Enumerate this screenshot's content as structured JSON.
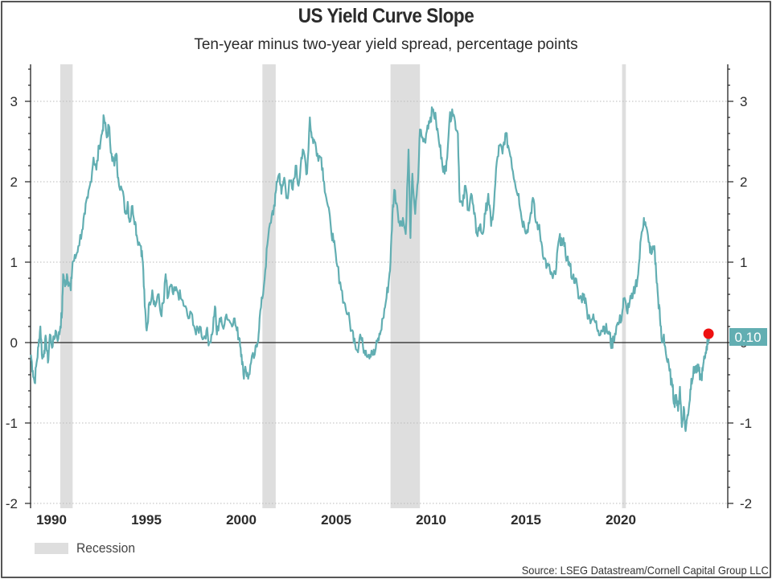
{
  "header": {
    "title": "US Yield Curve Slope",
    "subtitle": "Ten-year minus two-year yield spread, percentage points"
  },
  "legend": {
    "recession_label": "Recession"
  },
  "footer": {
    "source": "Source: LSEG Datastream/Cornell Capital Group LLC"
  },
  "colors": {
    "series": "#62aeb2",
    "recession": "#dedede",
    "end_marker": "#ee1111",
    "end_label_bg": "#62aeb2",
    "axis": "#222222",
    "grid": "#bbbbbb"
  },
  "chart_data": {
    "type": "line",
    "title": "US Yield Curve Slope",
    "subtitle": "Ten-year minus two-year yield spread, percentage points",
    "xlabel": "",
    "ylabel": "",
    "xlim": [
      1989.0,
      2025.7
    ],
    "ylim": [
      -2,
      3.45
    ],
    "x_ticks": [
      1990,
      1995,
      2000,
      2005,
      2010,
      2015,
      2020
    ],
    "x_tick_labels": [
      "1990",
      "1995",
      "2000",
      "2005",
      "2010",
      "2015",
      "2020"
    ],
    "y_ticks": [
      -2,
      -1,
      0,
      1,
      2,
      3
    ],
    "y_tick_labels": [
      "-2",
      "-1",
      "0",
      "1",
      "2",
      "3"
    ],
    "y_minor_step": 0.2,
    "grid": "horizontal dotted at major y ticks",
    "axes": "left and right",
    "legend_position": "bottom-left",
    "recessions": [
      {
        "start": 1990.55,
        "end": 1991.2
      },
      {
        "start": 2001.2,
        "end": 2001.9
      },
      {
        "start": 2007.95,
        "end": 2009.5
      },
      {
        "start": 2020.15,
        "end": 2020.35
      }
    ],
    "end_value": {
      "x": 2024.75,
      "y": 0.1,
      "label": "0.10"
    },
    "series": [
      {
        "name": "10Y-2Y spread",
        "points": [
          [
            1989.0,
            -0.15
          ],
          [
            1989.1,
            -0.35
          ],
          [
            1989.2,
            -0.5
          ],
          [
            1989.3,
            -0.25
          ],
          [
            1989.4,
            -0.05
          ],
          [
            1989.5,
            0.2
          ],
          [
            1989.6,
            -0.2
          ],
          [
            1989.7,
            -0.1
          ],
          [
            1989.8,
            0.05
          ],
          [
            1989.9,
            -0.25
          ],
          [
            1990.0,
            0.1
          ],
          [
            1990.15,
            -0.05
          ],
          [
            1990.3,
            0.15
          ],
          [
            1990.45,
            0.05
          ],
          [
            1990.55,
            0.2
          ],
          [
            1990.65,
            0.4
          ],
          [
            1990.7,
            0.85
          ],
          [
            1990.8,
            0.7
          ],
          [
            1990.9,
            0.85
          ],
          [
            1991.0,
            0.75
          ],
          [
            1991.1,
            0.65
          ],
          [
            1991.2,
            1.0
          ],
          [
            1991.35,
            1.05
          ],
          [
            1991.5,
            1.2
          ],
          [
            1991.7,
            1.4
          ],
          [
            1991.85,
            1.6
          ],
          [
            1992.0,
            1.8
          ],
          [
            1992.15,
            2.0
          ],
          [
            1992.3,
            2.3
          ],
          [
            1992.45,
            2.15
          ],
          [
            1992.6,
            2.45
          ],
          [
            1992.75,
            2.6
          ],
          [
            1992.85,
            2.8
          ],
          [
            1993.0,
            2.55
          ],
          [
            1993.1,
            2.7
          ],
          [
            1993.25,
            2.35
          ],
          [
            1993.4,
            2.2
          ],
          [
            1993.5,
            2.35
          ],
          [
            1993.6,
            2.05
          ],
          [
            1993.8,
            1.9
          ],
          [
            1994.0,
            1.6
          ],
          [
            1994.1,
            1.75
          ],
          [
            1994.2,
            1.5
          ],
          [
            1994.35,
            1.7
          ],
          [
            1994.5,
            1.5
          ],
          [
            1994.6,
            1.3
          ],
          [
            1994.8,
            1.2
          ],
          [
            1994.9,
            1.0
          ],
          [
            1995.0,
            0.45
          ],
          [
            1995.1,
            0.15
          ],
          [
            1995.25,
            0.5
          ],
          [
            1995.4,
            0.65
          ],
          [
            1995.55,
            0.45
          ],
          [
            1995.7,
            0.6
          ],
          [
            1995.85,
            0.35
          ],
          [
            1996.0,
            0.5
          ],
          [
            1996.1,
            0.85
          ],
          [
            1996.2,
            0.55
          ],
          [
            1996.35,
            0.7
          ],
          [
            1996.5,
            0.6
          ],
          [
            1996.7,
            0.65
          ],
          [
            1996.9,
            0.55
          ],
          [
            1997.1,
            0.45
          ],
          [
            1997.3,
            0.3
          ],
          [
            1997.5,
            0.35
          ],
          [
            1997.7,
            0.1
          ],
          [
            1997.9,
            0.2
          ],
          [
            1998.1,
            0.05
          ],
          [
            1998.25,
            0.15
          ],
          [
            1998.4,
            0.0
          ],
          [
            1998.55,
            0.1
          ],
          [
            1998.7,
            0.45
          ],
          [
            1998.8,
            0.1
          ],
          [
            1998.95,
            0.3
          ],
          [
            1999.1,
            0.2
          ],
          [
            1999.3,
            0.35
          ],
          [
            1999.5,
            0.25
          ],
          [
            1999.7,
            0.3
          ],
          [
            1999.85,
            0.15
          ],
          [
            2000.0,
            0.05
          ],
          [
            2000.1,
            -0.15
          ],
          [
            2000.2,
            -0.4
          ],
          [
            2000.3,
            -0.3
          ],
          [
            2000.45,
            -0.45
          ],
          [
            2000.6,
            -0.25
          ],
          [
            2000.8,
            -0.15
          ],
          [
            2000.95,
            0.0
          ],
          [
            2001.05,
            0.3
          ],
          [
            2001.2,
            0.55
          ],
          [
            2001.35,
            0.9
          ],
          [
            2001.5,
            1.3
          ],
          [
            2001.7,
            1.6
          ],
          [
            2001.85,
            1.7
          ],
          [
            2001.95,
            2.0
          ],
          [
            2002.1,
            2.1
          ],
          [
            2002.2,
            1.85
          ],
          [
            2002.35,
            2.05
          ],
          [
            2002.5,
            1.8
          ],
          [
            2002.65,
            2.0
          ],
          [
            2002.8,
            1.9
          ],
          [
            2002.95,
            2.2
          ],
          [
            2003.1,
            1.95
          ],
          [
            2003.25,
            2.3
          ],
          [
            2003.4,
            2.35
          ],
          [
            2003.55,
            2.1
          ],
          [
            2003.7,
            2.8
          ],
          [
            2003.8,
            2.55
          ],
          [
            2003.95,
            2.5
          ],
          [
            2004.1,
            2.35
          ],
          [
            2004.3,
            2.3
          ],
          [
            2004.45,
            2.0
          ],
          [
            2004.6,
            1.75
          ],
          [
            2004.8,
            1.45
          ],
          [
            2004.95,
            1.25
          ],
          [
            2005.1,
            1.0
          ],
          [
            2005.3,
            0.75
          ],
          [
            2005.5,
            0.5
          ],
          [
            2005.7,
            0.35
          ],
          [
            2005.9,
            0.15
          ],
          [
            2006.05,
            0.05
          ],
          [
            2006.2,
            -0.1
          ],
          [
            2006.35,
            0.1
          ],
          [
            2006.5,
            -0.05
          ],
          [
            2006.65,
            -0.1
          ],
          [
            2006.8,
            -0.15
          ],
          [
            2006.95,
            -0.1
          ],
          [
            2007.1,
            -0.15
          ],
          [
            2007.25,
            0.0
          ],
          [
            2007.4,
            0.1
          ],
          [
            2007.55,
            0.3
          ],
          [
            2007.7,
            0.5
          ],
          [
            2007.85,
            0.75
          ],
          [
            2007.95,
            1.0
          ],
          [
            2008.05,
            1.6
          ],
          [
            2008.15,
            1.9
          ],
          [
            2008.3,
            1.7
          ],
          [
            2008.45,
            1.45
          ],
          [
            2008.6,
            1.55
          ],
          [
            2008.75,
            1.35
          ],
          [
            2008.9,
            2.4
          ],
          [
            2009.0,
            1.3
          ],
          [
            2009.1,
            2.1
          ],
          [
            2009.25,
            1.6
          ],
          [
            2009.4,
            2.0
          ],
          [
            2009.5,
            2.65
          ],
          [
            2009.6,
            2.55
          ],
          [
            2009.75,
            2.5
          ],
          [
            2009.9,
            2.7
          ],
          [
            2010.05,
            2.8
          ],
          [
            2010.2,
            2.9
          ],
          [
            2010.35,
            2.75
          ],
          [
            2010.5,
            2.5
          ],
          [
            2010.65,
            2.3
          ],
          [
            2010.8,
            2.1
          ],
          [
            2010.9,
            2.25
          ],
          [
            2011.05,
            2.75
          ],
          [
            2011.2,
            2.9
          ],
          [
            2011.35,
            2.75
          ],
          [
            2011.5,
            2.6
          ],
          [
            2011.6,
            1.75
          ],
          [
            2011.75,
            1.7
          ],
          [
            2011.9,
            1.95
          ],
          [
            2012.05,
            1.65
          ],
          [
            2012.2,
            1.85
          ],
          [
            2012.35,
            1.6
          ],
          [
            2012.5,
            1.35
          ],
          [
            2012.65,
            1.45
          ],
          [
            2012.8,
            1.35
          ],
          [
            2012.95,
            1.6
          ],
          [
            2013.1,
            1.85
          ],
          [
            2013.25,
            1.45
          ],
          [
            2013.4,
            1.7
          ],
          [
            2013.55,
            2.25
          ],
          [
            2013.7,
            2.45
          ],
          [
            2013.85,
            2.35
          ],
          [
            2014.0,
            2.6
          ],
          [
            2014.15,
            2.45
          ],
          [
            2014.3,
            2.3
          ],
          [
            2014.5,
            2.0
          ],
          [
            2014.7,
            1.85
          ],
          [
            2014.85,
            1.55
          ],
          [
            2015.0,
            1.45
          ],
          [
            2015.15,
            1.4
          ],
          [
            2015.3,
            1.55
          ],
          [
            2015.45,
            1.8
          ],
          [
            2015.6,
            1.5
          ],
          [
            2015.75,
            1.45
          ],
          [
            2015.9,
            1.25
          ],
          [
            2016.05,
            1.05
          ],
          [
            2016.2,
            0.95
          ],
          [
            2016.35,
            0.9
          ],
          [
            2016.5,
            0.8
          ],
          [
            2016.65,
            0.85
          ],
          [
            2016.8,
            1.25
          ],
          [
            2016.95,
            1.3
          ],
          [
            2017.1,
            1.2
          ],
          [
            2017.25,
            1.05
          ],
          [
            2017.4,
            0.95
          ],
          [
            2017.55,
            0.8
          ],
          [
            2017.7,
            0.8
          ],
          [
            2017.85,
            0.55
          ],
          [
            2018.0,
            0.55
          ],
          [
            2018.15,
            0.6
          ],
          [
            2018.3,
            0.4
          ],
          [
            2018.45,
            0.3
          ],
          [
            2018.6,
            0.3
          ],
          [
            2018.75,
            0.25
          ],
          [
            2018.9,
            0.15
          ],
          [
            2019.05,
            0.15
          ],
          [
            2019.2,
            0.2
          ],
          [
            2019.35,
            0.15
          ],
          [
            2019.5,
            0.1
          ],
          [
            2019.6,
            -0.05
          ],
          [
            2019.7,
            0.05
          ],
          [
            2019.85,
            0.2
          ],
          [
            2020.0,
            0.25
          ],
          [
            2020.15,
            0.35
          ],
          [
            2020.25,
            0.55
          ],
          [
            2020.4,
            0.4
          ],
          [
            2020.55,
            0.5
          ],
          [
            2020.7,
            0.55
          ],
          [
            2020.85,
            0.7
          ],
          [
            2021.0,
            0.85
          ],
          [
            2021.15,
            1.3
          ],
          [
            2021.3,
            1.55
          ],
          [
            2021.4,
            1.45
          ],
          [
            2021.55,
            1.25
          ],
          [
            2021.7,
            1.1
          ],
          [
            2021.85,
            1.2
          ],
          [
            2021.95,
            0.85
          ],
          [
            2022.05,
            0.55
          ],
          [
            2022.15,
            0.3
          ],
          [
            2022.25,
            0.0
          ],
          [
            2022.35,
            0.1
          ],
          [
            2022.5,
            -0.2
          ],
          [
            2022.65,
            -0.35
          ],
          [
            2022.8,
            -0.55
          ],
          [
            2022.9,
            -0.75
          ],
          [
            2023.0,
            -0.65
          ],
          [
            2023.1,
            -0.85
          ],
          [
            2023.2,
            -0.55
          ],
          [
            2023.3,
            -1.05
          ],
          [
            2023.4,
            -0.8
          ],
          [
            2023.5,
            -1.1
          ],
          [
            2023.6,
            -0.9
          ],
          [
            2023.7,
            -0.75
          ],
          [
            2023.8,
            -0.45
          ],
          [
            2023.9,
            -0.4
          ],
          [
            2024.0,
            -0.3
          ],
          [
            2024.1,
            -0.35
          ],
          [
            2024.2,
            -0.35
          ],
          [
            2024.3,
            -0.45
          ],
          [
            2024.4,
            -0.35
          ],
          [
            2024.5,
            -0.2
          ],
          [
            2024.6,
            -0.05
          ],
          [
            2024.7,
            0.05
          ],
          [
            2024.75,
            0.1
          ]
        ]
      }
    ]
  }
}
